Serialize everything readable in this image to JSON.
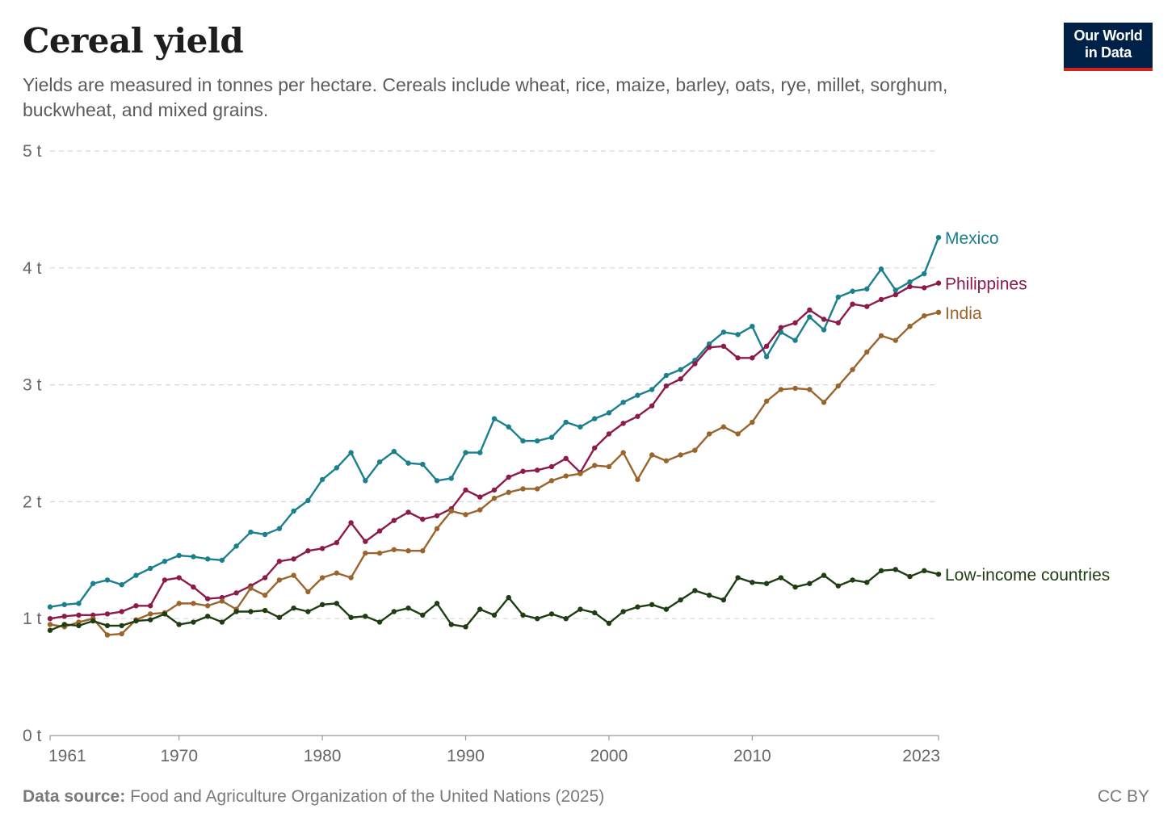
{
  "header": {
    "title": "Cereal yield",
    "subtitle": "Yields are measured in tonnes per hectare. Cereals include wheat, rice, maize, barley, oats, rye, millet, sorghum, buckwheat, and mixed grains.",
    "logo_line1": "Our World",
    "logo_line2": "in Data"
  },
  "footer": {
    "source_label": "Data source:",
    "source_text": "Food and Agriculture Organization of the United Nations (2025)",
    "license": "CC BY"
  },
  "chart_data": {
    "type": "line",
    "title": "Cereal yield",
    "xlabel": "",
    "ylabel": "",
    "xlim": [
      1961,
      2023
    ],
    "ylim": [
      0,
      5
    ],
    "grid": true,
    "legend": "right-end labels",
    "x_ticks": [
      {
        "value": 1961,
        "label": "1961"
      },
      {
        "value": 1970,
        "label": "1970"
      },
      {
        "value": 1980,
        "label": "1980"
      },
      {
        "value": 1990,
        "label": "1990"
      },
      {
        "value": 2000,
        "label": "2000"
      },
      {
        "value": 2010,
        "label": "2010"
      },
      {
        "value": 2023,
        "label": "2023"
      }
    ],
    "y_ticks": [
      {
        "value": 0,
        "label": "0 t"
      },
      {
        "value": 1,
        "label": "1 t"
      },
      {
        "value": 2,
        "label": "2 t"
      },
      {
        "value": 3,
        "label": "3 t"
      },
      {
        "value": 4,
        "label": "4 t"
      },
      {
        "value": 5,
        "label": "5 t"
      }
    ],
    "x": [
      1961,
      1962,
      1963,
      1964,
      1965,
      1966,
      1967,
      1968,
      1969,
      1970,
      1971,
      1972,
      1973,
      1974,
      1975,
      1976,
      1977,
      1978,
      1979,
      1980,
      1981,
      1982,
      1983,
      1984,
      1985,
      1986,
      1987,
      1988,
      1989,
      1990,
      1991,
      1992,
      1993,
      1994,
      1995,
      1996,
      1997,
      1998,
      1999,
      2000,
      2001,
      2002,
      2003,
      2004,
      2005,
      2006,
      2007,
      2008,
      2009,
      2010,
      2011,
      2012,
      2013,
      2014,
      2015,
      2016,
      2017,
      2018,
      2019,
      2020,
      2021,
      2022,
      2023
    ],
    "series": [
      {
        "name": "Mexico",
        "color": "#1a7f8e",
        "values": [
          1.1,
          1.12,
          1.13,
          1.3,
          1.33,
          1.29,
          1.37,
          1.43,
          1.49,
          1.54,
          1.53,
          1.51,
          1.5,
          1.62,
          1.74,
          1.72,
          1.77,
          1.92,
          2.01,
          2.19,
          2.29,
          2.42,
          2.18,
          2.34,
          2.43,
          2.33,
          2.32,
          2.18,
          2.2,
          2.42,
          2.42,
          2.71,
          2.64,
          2.52,
          2.52,
          2.55,
          2.68,
          2.64,
          2.71,
          2.76,
          2.85,
          2.91,
          2.96,
          3.08,
          3.13,
          3.21,
          3.35,
          3.45,
          3.43,
          3.5,
          3.24,
          3.45,
          3.38,
          3.58,
          3.47,
          3.75,
          3.8,
          3.82,
          3.99,
          3.81,
          3.88,
          3.95,
          4.26
        ]
      },
      {
        "name": "Philippines",
        "color": "#8c1a4b",
        "values": [
          1.0,
          1.02,
          1.03,
          1.03,
          1.04,
          1.06,
          1.11,
          1.11,
          1.33,
          1.35,
          1.27,
          1.17,
          1.18,
          1.22,
          1.28,
          1.35,
          1.49,
          1.51,
          1.58,
          1.6,
          1.65,
          1.82,
          1.66,
          1.75,
          1.84,
          1.91,
          1.85,
          1.88,
          1.94,
          2.1,
          2.04,
          2.1,
          2.21,
          2.26,
          2.27,
          2.3,
          2.37,
          2.25,
          2.46,
          2.58,
          2.67,
          2.73,
          2.82,
          2.99,
          3.05,
          3.18,
          3.32,
          3.33,
          3.23,
          3.23,
          3.33,
          3.49,
          3.53,
          3.64,
          3.56,
          3.53,
          3.69,
          3.67,
          3.73,
          3.77,
          3.84,
          3.83,
          3.87
        ]
      },
      {
        "name": "India",
        "color": "#9a652d",
        "values": [
          0.95,
          0.93,
          0.97,
          1.0,
          0.86,
          0.87,
          0.99,
          1.04,
          1.05,
          1.13,
          1.13,
          1.11,
          1.15,
          1.08,
          1.26,
          1.2,
          1.33,
          1.37,
          1.23,
          1.35,
          1.39,
          1.35,
          1.56,
          1.56,
          1.59,
          1.58,
          1.58,
          1.77,
          1.92,
          1.89,
          1.93,
          2.03,
          2.08,
          2.11,
          2.11,
          2.18,
          2.22,
          2.24,
          2.31,
          2.3,
          2.42,
          2.19,
          2.4,
          2.35,
          2.4,
          2.44,
          2.58,
          2.64,
          2.58,
          2.68,
          2.86,
          2.96,
          2.97,
          2.96,
          2.85,
          2.99,
          3.13,
          3.28,
          3.42,
          3.38,
          3.5,
          3.59,
          3.62
        ]
      },
      {
        "name": "Low-income countries",
        "color": "#1f3d12",
        "values": [
          0.9,
          0.95,
          0.94,
          0.98,
          0.94,
          0.94,
          0.98,
          0.99,
          1.04,
          0.95,
          0.97,
          1.02,
          0.97,
          1.06,
          1.06,
          1.07,
          1.01,
          1.09,
          1.06,
          1.12,
          1.13,
          1.01,
          1.02,
          0.97,
          1.06,
          1.09,
          1.03,
          1.13,
          0.95,
          0.93,
          1.08,
          1.03,
          1.18,
          1.03,
          1.0,
          1.04,
          1.0,
          1.08,
          1.05,
          0.96,
          1.06,
          1.1,
          1.12,
          1.08,
          1.16,
          1.24,
          1.2,
          1.16,
          1.35,
          1.31,
          1.3,
          1.35,
          1.27,
          1.3,
          1.37,
          1.28,
          1.33,
          1.31,
          1.41,
          1.42,
          1.36,
          1.41,
          1.38
        ]
      }
    ]
  }
}
